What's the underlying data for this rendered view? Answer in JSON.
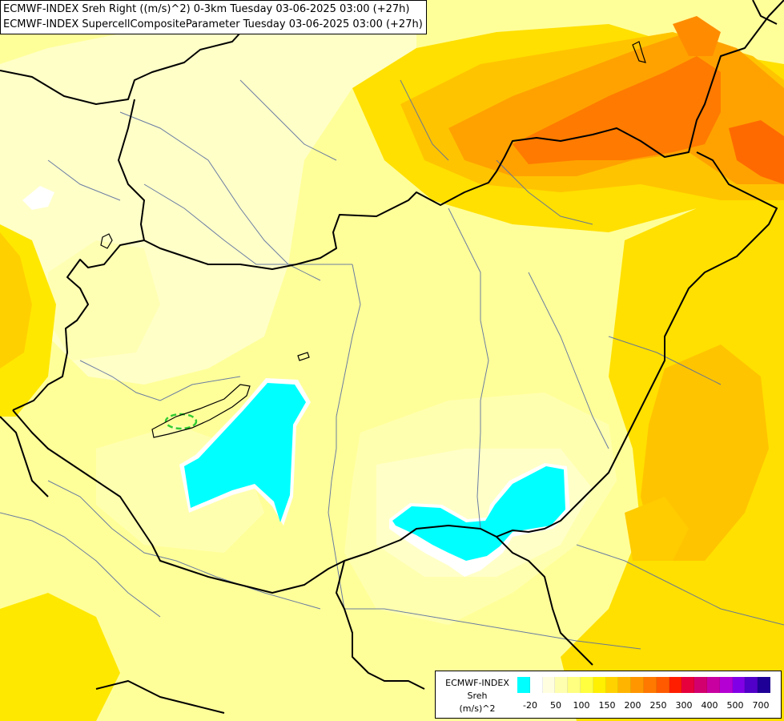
{
  "title": {
    "line1": "ECMWF-INDEX Sreh Right ((m/s)^2) 0-3km Tuesday 03-06-2025 03:00 (+27h)",
    "line2": "ECMWF-INDEX SupercellCompositeParameter Tuesday 03-06-2025 03:00 (+27h)"
  },
  "legend": {
    "line1": "ECMWF-INDEX",
    "line2": "Sreh",
    "line3": "(m/s)^2",
    "swatch_colors": [
      "#00ffff",
      "#ffffff",
      "#ffffe0",
      "#ffffb0",
      "#ffff80",
      "#ffff40",
      "#ffef00",
      "#ffd200",
      "#ffb400",
      "#ff9600",
      "#ff7800",
      "#ff5a00",
      "#ff1e00",
      "#e6003c",
      "#d2006e",
      "#c800a0",
      "#b400d2",
      "#8200e6",
      "#5000c8",
      "#1e0096"
    ],
    "ticks": [
      "-20",
      "50",
      "100",
      "150",
      "200",
      "250",
      "300",
      "400",
      "500",
      "700"
    ]
  },
  "colors": {
    "neg_shear": "#00ffff",
    "light": "#ffffcc",
    "pale": "#ffffa0",
    "yellow": "#ffff40",
    "gold": "#ffe000",
    "amber": "#ffc800",
    "orange": "#ffa000",
    "deep_orange": "#ff6000",
    "border": "#000000",
    "river": "#5a6ea0",
    "scp_contour": "#33cc33"
  }
}
